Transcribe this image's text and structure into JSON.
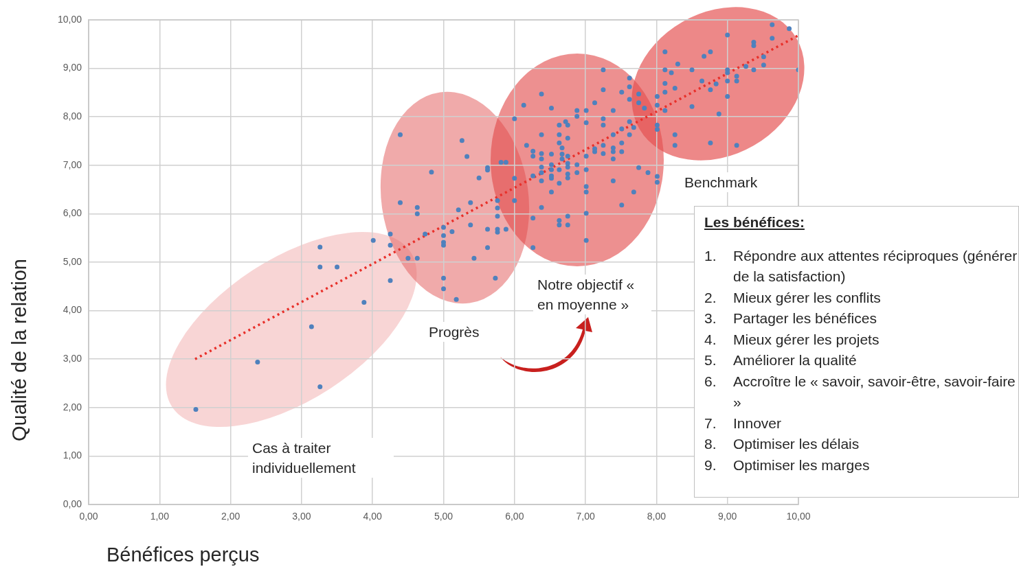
{
  "chart_data": {
    "type": "scatter",
    "xlabel": "Bénéfices perçus",
    "ylabel": "Qualité de la relation",
    "xlim": [
      0,
      10
    ],
    "ylim": [
      0,
      10
    ],
    "xticks": [
      {
        "value": 0,
        "label": "0,00"
      },
      {
        "value": 1,
        "label": "1,00"
      },
      {
        "value": 2,
        "label": "2,00"
      },
      {
        "value": 3,
        "label": "3,00"
      },
      {
        "value": 4,
        "label": "4,00"
      },
      {
        "value": 5,
        "label": "5,00"
      },
      {
        "value": 6,
        "label": "6,00"
      },
      {
        "value": 7,
        "label": "7,00"
      },
      {
        "value": 8,
        "label": "8,00"
      },
      {
        "value": 9,
        "label": "9,00"
      },
      {
        "value": 10,
        "label": "10,00"
      }
    ],
    "yticks": [
      {
        "value": 0,
        "label": "0,00"
      },
      {
        "value": 1,
        "label": "1,00"
      },
      {
        "value": 2,
        "label": "2,00"
      },
      {
        "value": 3,
        "label": "3,00"
      },
      {
        "value": 4,
        "label": "4,00"
      },
      {
        "value": 5,
        "label": "5,00"
      },
      {
        "value": 6,
        "label": "6,00"
      },
      {
        "value": 7,
        "label": "7,00"
      },
      {
        "value": 8,
        "label": "8,00"
      },
      {
        "value": 9,
        "label": "9,00"
      },
      {
        "value": 10,
        "label": "10,00"
      }
    ],
    "grid": true,
    "marker": "circle",
    "series": [
      {
        "type": "scatter",
        "color": "#4f81bd",
        "x": [
          3.26,
          3.26,
          3.5,
          4.01,
          4.25,
          4.25,
          4.5,
          4.63,
          4.74,
          4.25,
          3.88,
          3.14,
          2.38,
          3.26,
          1.51,
          4.39,
          5.26,
          5.33,
          4.83,
          5.62,
          5.62,
          5.5,
          4.39,
          4.63,
          4.63,
          5.38,
          5.21,
          5.76,
          5.76,
          5.76,
          5.38,
          5.62,
          5.76,
          5.76,
          5.0,
          5.0,
          5.0,
          5.0,
          5.12,
          5.43,
          5.62,
          5.0,
          5.0,
          5.18,
          5.73,
          7.25,
          6.38,
          7.25,
          7.51,
          7.62,
          7.62,
          7.75,
          6.13,
          6.52,
          7.13,
          6.88,
          6.88,
          7.01,
          7.01,
          7.39,
          7.62,
          7.75,
          7.83,
          6.0,
          6.63,
          6.72,
          6.75,
          7.25,
          7.25,
          7.62,
          7.68,
          7.62,
          8.01,
          8.01,
          6.38,
          6.63,
          6.75,
          7.39,
          7.51,
          6.17,
          6.63,
          6.67,
          6.26,
          6.26,
          6.38,
          6.38,
          6.52,
          6.67,
          6.67,
          6.75,
          7.01,
          7.13,
          7.13,
          7.25,
          7.25,
          7.39,
          7.39,
          7.39,
          7.51,
          7.51,
          5.81,
          5.88,
          6.38,
          6.38,
          6.52,
          6.52,
          6.63,
          6.75,
          6.75,
          6.88,
          7.01,
          6.26,
          6.38,
          6.52,
          6.52,
          6.63,
          6.75,
          6.75,
          6.88,
          6.0,
          7.75,
          7.88,
          8.01,
          8.01,
          7.39,
          6.52,
          7.01,
          7.01,
          7.68,
          6.0,
          6.38,
          7.51,
          5.88,
          6.26,
          6.26,
          6.63,
          6.63,
          6.75,
          6.75,
          7.01,
          7.01,
          9.63,
          9.87,
          9.0,
          9.63,
          9.37,
          9.37,
          8.12,
          8.67,
          8.76,
          9.51,
          8.3,
          9.26,
          9.51,
          8.12,
          8.21,
          8.5,
          9.0,
          9.0,
          9.37,
          10.0,
          9.13,
          9.13,
          9.0,
          8.64,
          8.84,
          8.76,
          8.12,
          8.12,
          8.26,
          9.0,
          8.01,
          8.01,
          8.12,
          8.5,
          8.88,
          8.26,
          8.26,
          8.76,
          9.13
        ],
        "values": [
          5.31,
          4.9,
          4.9,
          5.45,
          5.58,
          5.35,
          5.08,
          5.08,
          5.58,
          4.62,
          4.17,
          3.67,
          2.94,
          2.43,
          1.96,
          7.63,
          7.51,
          7.18,
          6.86,
          6.95,
          6.9,
          6.74,
          6.23,
          6.13,
          6.0,
          6.23,
          6.08,
          6.27,
          6.12,
          5.95,
          5.77,
          5.68,
          5.68,
          5.62,
          5.72,
          5.55,
          5.41,
          5.35,
          5.63,
          5.08,
          5.3,
          4.67,
          4.45,
          4.23,
          4.67,
          8.97,
          8.47,
          8.56,
          8.51,
          8.8,
          8.62,
          8.47,
          8.24,
          8.18,
          8.29,
          8.13,
          8.01,
          8.13,
          7.88,
          8.13,
          8.36,
          8.29,
          8.18,
          7.96,
          7.83,
          7.9,
          7.83,
          7.96,
          7.83,
          7.9,
          7.78,
          7.63,
          7.83,
          7.74,
          7.63,
          7.63,
          7.56,
          7.63,
          7.75,
          7.41,
          7.46,
          7.36,
          7.29,
          7.19,
          7.24,
          7.13,
          7.23,
          7.23,
          7.13,
          7.19,
          7.19,
          7.34,
          7.28,
          7.41,
          7.24,
          7.36,
          7.28,
          7.13,
          7.46,
          7.28,
          7.06,
          7.06,
          6.96,
          6.85,
          7.01,
          6.91,
          6.91,
          7.04,
          6.96,
          7.01,
          6.91,
          6.78,
          6.68,
          6.78,
          6.73,
          6.63,
          6.82,
          6.74,
          6.85,
          6.73,
          6.95,
          6.85,
          6.77,
          6.65,
          6.68,
          6.45,
          6.56,
          6.45,
          6.45,
          6.27,
          6.13,
          6.18,
          5.68,
          5.91,
          5.3,
          5.86,
          5.77,
          5.95,
          5.77,
          6.01,
          5.45,
          9.9,
          9.82,
          9.69,
          9.62,
          9.54,
          9.47,
          9.34,
          9.25,
          9.34,
          9.24,
          9.09,
          9.04,
          9.07,
          8.97,
          8.91,
          8.97,
          8.97,
          8.91,
          8.97,
          8.97,
          8.84,
          8.74,
          8.74,
          8.74,
          8.68,
          8.56,
          8.69,
          8.51,
          8.59,
          8.42,
          8.42,
          8.24,
          8.13,
          8.21,
          8.06,
          7.63,
          7.41,
          7.46,
          7.41
        ]
      },
      {
        "type": "line",
        "color": "#e8302a",
        "line_style": "dotted",
        "marker": "none",
        "x": [
          1.5,
          10
        ],
        "values": [
          3.0,
          9.68
        ]
      }
    ],
    "annotations": [
      "Benchmark",
      "Progrès",
      "Notre objectif « en moyenne »",
      "Cas à traiter individuellement",
      "Les bénéfices:",
      "1. Répondre aux attentes réciproques (générer de la satisfaction)",
      "2. Mieux gérer les conflits",
      "3. Partager les bénéfices",
      "4. Mieux gérer les projets",
      "5. Améliorer la qualité",
      "6. Accroître le « savoir, savoir-être, savoir-faire »",
      "7. Innover",
      "8. Optimiser les délais",
      "9. Optimiser les marges"
    ]
  }
}
